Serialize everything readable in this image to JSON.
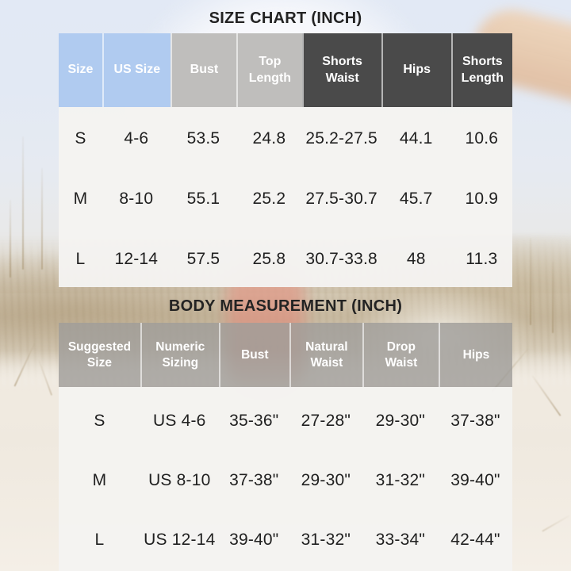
{
  "colors": {
    "header_blue": "#b0cbf0",
    "header_gray": "#bfbebc",
    "header_dark": "#4a4a4a",
    "header_gray2": "rgba(160,158,154,0.82)",
    "table_bg": "rgba(244,243,241,0.97)",
    "header_text": "#ffffff",
    "data_text": "#202020",
    "title_text": "#232323"
  },
  "chart_data": [
    {
      "id": "size_chart",
      "type": "table",
      "title": "SIZE CHART (INCH)",
      "unit": "inch",
      "columns": [
        {
          "label": "Size",
          "color": "header_blue",
          "width": 9.6
        },
        {
          "label": "US Size",
          "color": "header_blue",
          "width": 15.0
        },
        {
          "label": "Bust",
          "color": "header_gray",
          "width": 14.6
        },
        {
          "label": "Top\nLength",
          "color": "header_gray",
          "width": 14.4
        },
        {
          "label": "Shorts\nWaist",
          "color": "header_dark",
          "width": 17.5
        },
        {
          "label": "Hips",
          "color": "header_dark",
          "width": 15.4
        },
        {
          "label": "Shorts\nLength",
          "color": "header_dark",
          "width": 13.5
        }
      ],
      "rows": [
        [
          "S",
          "4-6",
          "53.5",
          "24.8",
          "25.2-27.5",
          "44.1",
          "10.6"
        ],
        [
          "M",
          "8-10",
          "55.1",
          "25.2",
          "27.5-30.7",
          "45.7",
          "10.9"
        ],
        [
          "L",
          "12-14",
          "57.5",
          "25.8",
          "30.7-33.8",
          "48",
          "11.3"
        ]
      ]
    },
    {
      "id": "body_measurement",
      "type": "table",
      "title": "BODY MEASUREMENT (INCH)",
      "unit": "inch",
      "columns": [
        {
          "label": "Suggested\nSize",
          "color": "header_gray2",
          "width": 18.0
        },
        {
          "label": "Numeric\nSizing",
          "color": "header_gray2",
          "width": 17.3
        },
        {
          "label": "Bust",
          "color": "header_gray2",
          "width": 15.6
        },
        {
          "label": "Natural\nWaist",
          "color": "header_gray2",
          "width": 16.1
        },
        {
          "label": "Drop\nWaist",
          "color": "header_gray2",
          "width": 16.8
        },
        {
          "label": "Hips",
          "color": "header_gray2",
          "width": 16.3
        }
      ],
      "rows": [
        [
          "S",
          "US 4-6",
          "35-36\"",
          "27-28\"",
          "29-30\"",
          "37-38\""
        ],
        [
          "M",
          "US 8-10",
          "37-38\"",
          "29-30\"",
          "31-32\"",
          "39-40\""
        ],
        [
          "L",
          "US 12-14",
          "39-40\"",
          "31-32\"",
          "33-34\"",
          "42-44\""
        ]
      ]
    }
  ]
}
